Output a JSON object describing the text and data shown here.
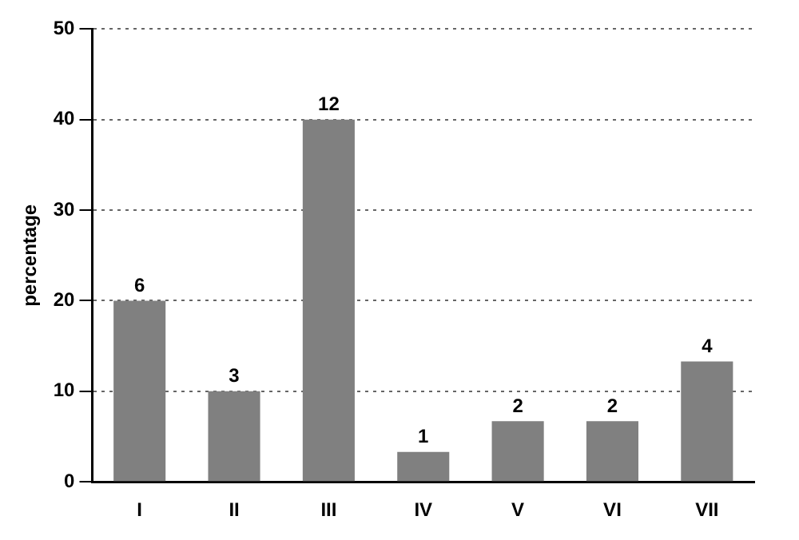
{
  "chart_data": {
    "type": "bar",
    "ylabel": "percentage",
    "categories": [
      "I",
      "II",
      "III",
      "IV",
      "V",
      "VI",
      "VII"
    ],
    "values": [
      20,
      10,
      40,
      3.3,
      6.7,
      6.7,
      13.3
    ],
    "annotations": [
      {
        "text": "6",
        "x": "I",
        "y": 20
      },
      {
        "text": "3",
        "x": "II",
        "y": 10
      },
      {
        "text": "12",
        "x": "III",
        "y": 40
      },
      {
        "text": "1",
        "x": "IV",
        "y": 3.3
      },
      {
        "text": "2",
        "x": "V",
        "y": 6.7
      },
      {
        "text": "2",
        "x": "VI",
        "y": 6.7
      },
      {
        "text": "4",
        "x": "VII",
        "y": 13.3
      }
    ],
    "color": "#808080",
    "ylim": [
      0,
      50
    ],
    "yticks": [
      0,
      10,
      20,
      30,
      40,
      50
    ],
    "grid": "y",
    "legend": false
  }
}
